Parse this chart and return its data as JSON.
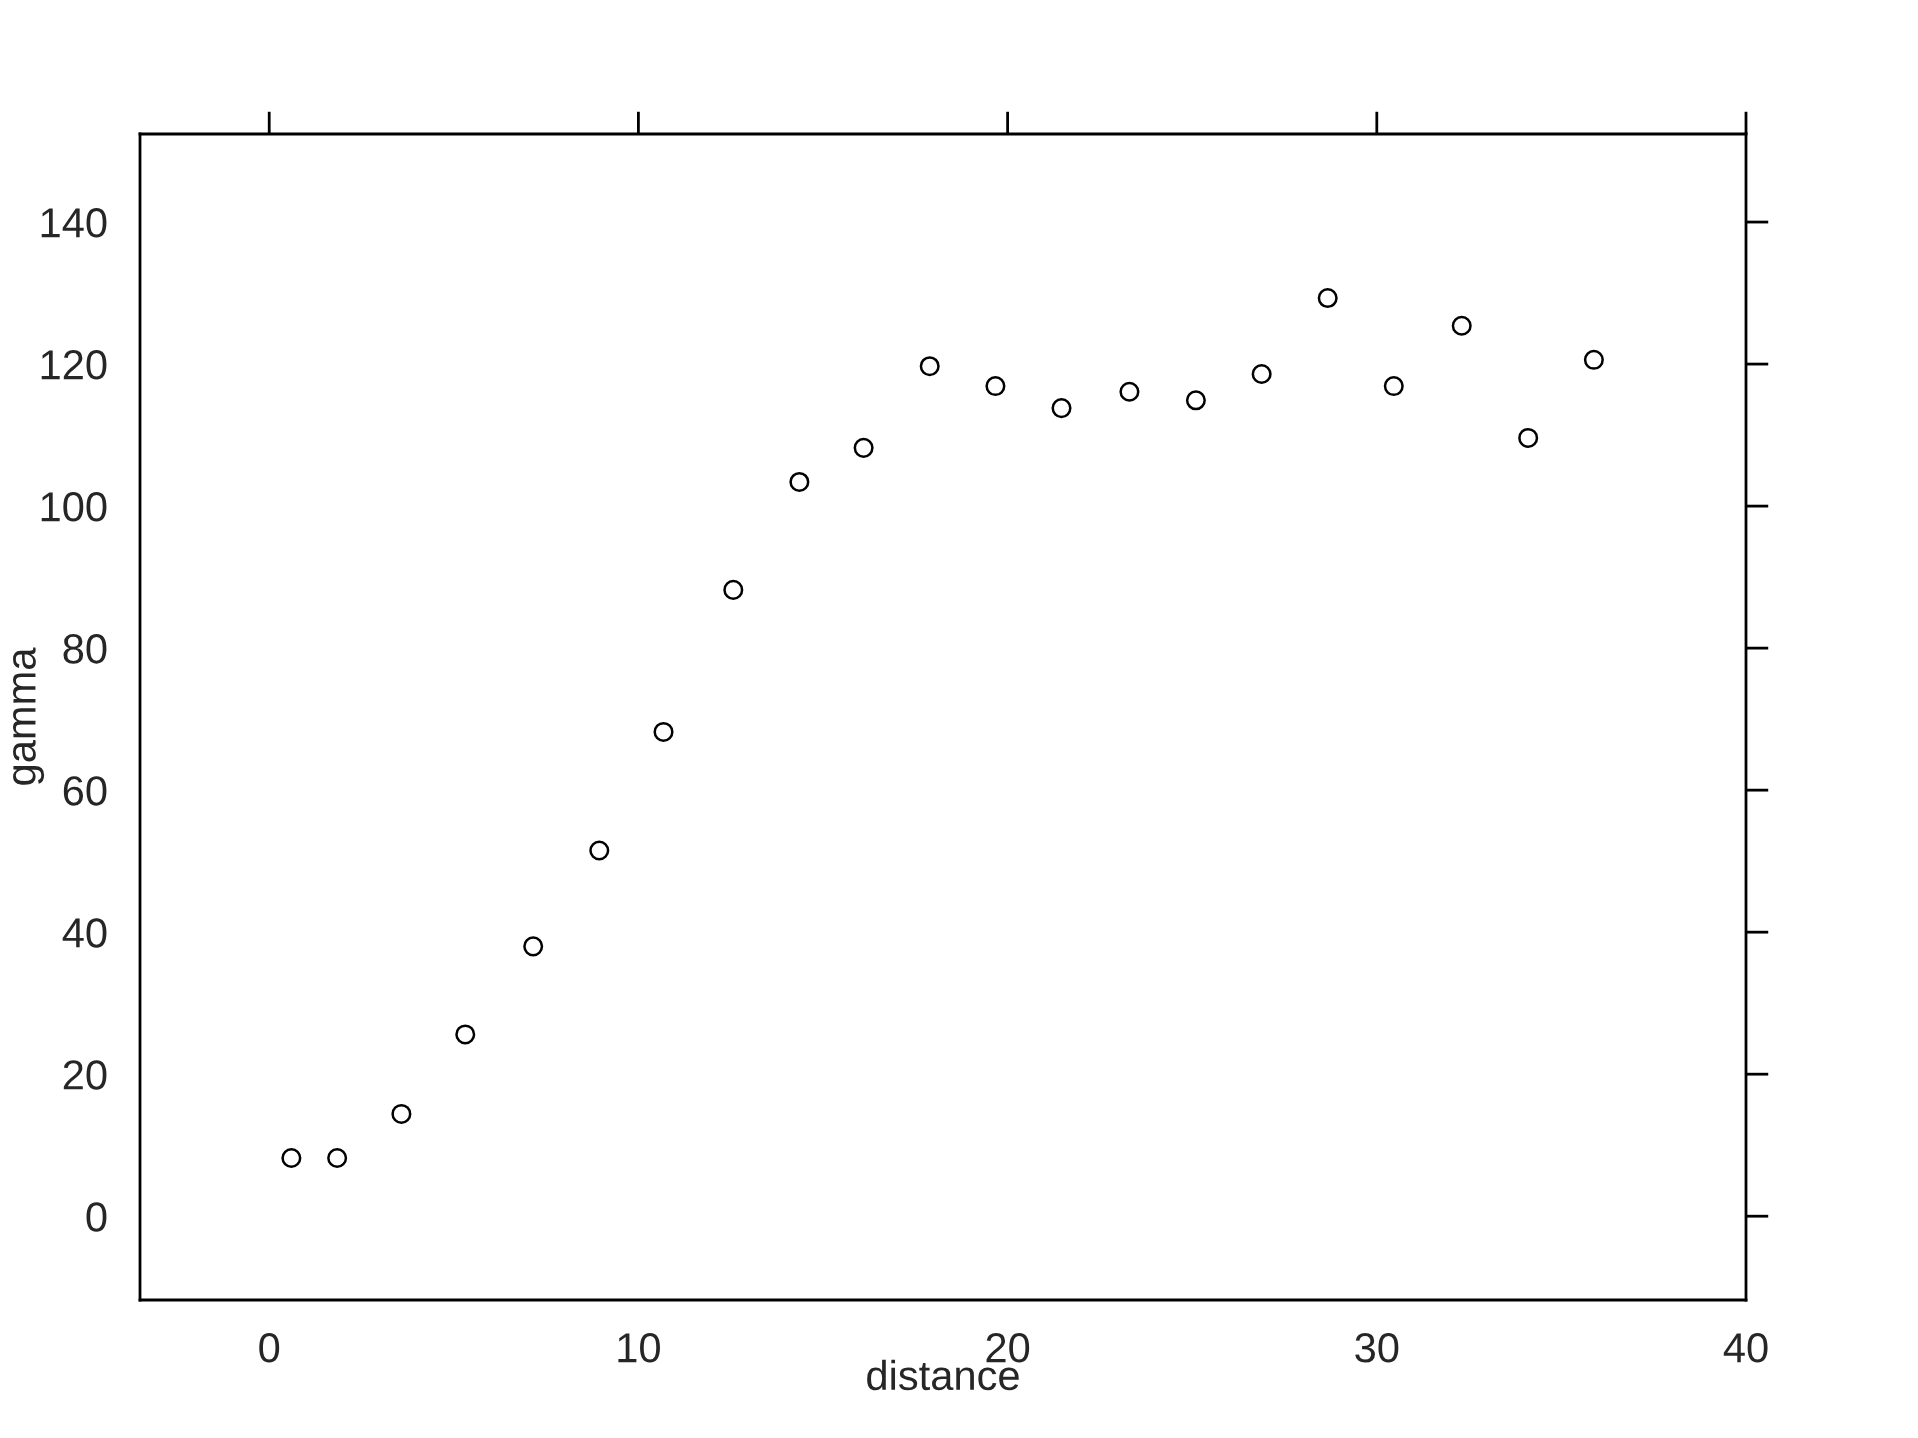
{
  "chart_data": {
    "type": "scatter",
    "xlabel": "distance",
    "ylabel": "gamma",
    "x": [
      0.6,
      1.84,
      3.58,
      5.31,
      7.15,
      8.94,
      10.68,
      12.57,
      14.36,
      16.1,
      17.89,
      19.67,
      21.46,
      23.3,
      25.1,
      26.88,
      28.67,
      30.46,
      32.3,
      34.1,
      35.88
    ],
    "values": [
      8.2,
      8.2,
      14.4,
      25.6,
      38.0,
      51.5,
      68.2,
      88.2,
      103.4,
      108.2,
      119.7,
      116.9,
      113.8,
      116.1,
      114.9,
      118.6,
      129.3,
      116.9,
      125.4,
      109.6,
      120.6
    ],
    "color": "#000000",
    "marker": "circle",
    "grid": false,
    "xlim": [
      -3.5,
      40
    ],
    "ylim": [
      -11.8,
      152.4
    ],
    "xticks": [
      0,
      10,
      20,
      30,
      40
    ],
    "yticks": [
      0,
      20,
      40,
      60,
      80,
      100,
      120,
      140
    ]
  }
}
